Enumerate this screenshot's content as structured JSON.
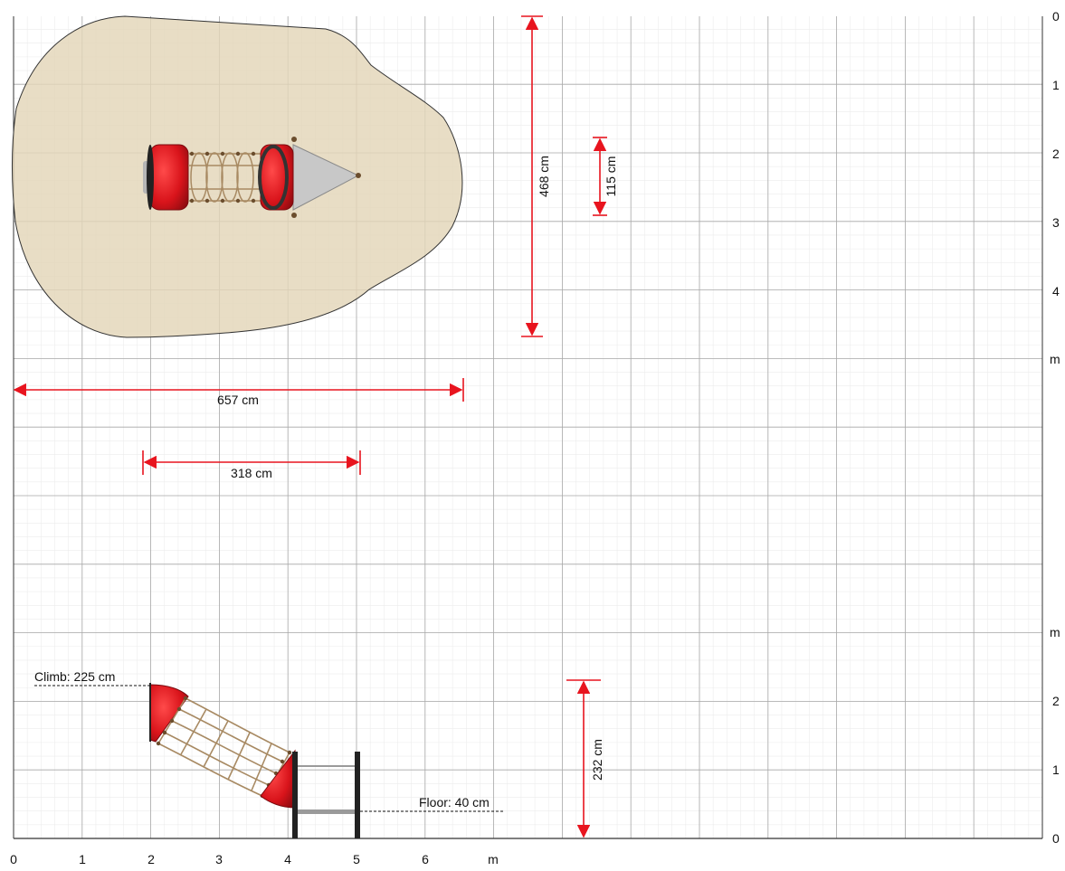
{
  "axes": {
    "top_right_ticks": [
      "0",
      "1",
      "2",
      "3",
      "4"
    ],
    "top_right_unit": "m",
    "bottom_right_ticks": [
      "0",
      "1",
      "2"
    ],
    "bottom_right_unit": "m",
    "bottom_ticks": [
      "0",
      "1",
      "2",
      "3",
      "4",
      "5",
      "6"
    ],
    "bottom_unit": "m"
  },
  "dimensions": {
    "plan_height": "468 cm",
    "equipment_width": "115 cm",
    "area_length": "657 cm",
    "equipment_length": "318 cm",
    "total_height": "232 cm",
    "climb_label": "Climb: 225 cm",
    "floor_label": "Floor: 40 cm"
  },
  "colors": {
    "dimension": "#e8141e",
    "safety_zone": "#e3d5b8",
    "tube_red": "#d9141b",
    "steel": "#b5b5b5",
    "rope": "#a88a63"
  }
}
